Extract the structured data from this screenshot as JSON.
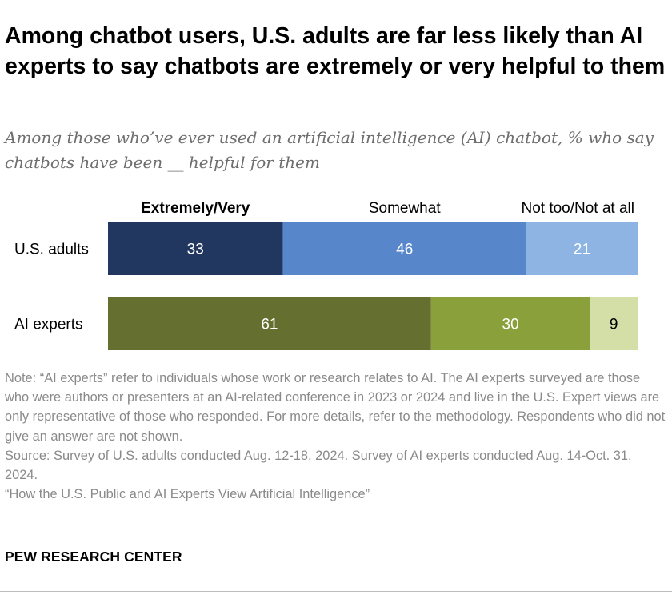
{
  "title": "Among chatbot users, U.S. adults are far less likely than AI experts to say chatbots are extremely or very helpful to them",
  "subtitle": "Among those who’ve ever used an artificial intelligence (AI) chatbot, % who say chatbots have been __ helpful for them",
  "colors": {
    "us_adults": [
      "#213760",
      "#5886cb",
      "#8db4e3"
    ],
    "ai_experts": [
      "#656f2f",
      "#8aa03b",
      "#d4dfa7"
    ],
    "value_text_light": "#ffffff",
    "value_text_dark": "#000000"
  },
  "chart_data": {
    "type": "bar",
    "orientation": "horizontal",
    "stacked": true,
    "categories": [
      "U.S. adults",
      "AI experts"
    ],
    "segments": [
      "Extremely/Very",
      "Somewhat",
      "Not too/Not at all"
    ],
    "series": [
      {
        "name": "Extremely/Very",
        "values": [
          33,
          61
        ]
      },
      {
        "name": "Somewhat",
        "values": [
          46,
          30
        ]
      },
      {
        "name": "Not too/Not at all",
        "values": [
          21,
          9
        ]
      }
    ],
    "xlim": [
      0,
      100
    ],
    "grid": false,
    "legend": "top"
  },
  "notes": [
    "Note: “AI experts” refer to individuals whose work or research relates to AI. The AI experts surveyed are those who were authors or presenters at an AI-related conference in 2023 or 2024 and live in the U.S. Expert views are only representative of those who responded. For more details, refer to the methodology. Respondents who did not give an answer are not shown.",
    "Source: Survey of U.S. adults conducted Aug. 12-18, 2024. Survey of AI experts conducted Aug. 14-Oct. 31, 2024.",
    "“How the U.S. Public and AI Experts View Artificial Intelligence”"
  ],
  "organization": "PEW RESEARCH CENTER"
}
